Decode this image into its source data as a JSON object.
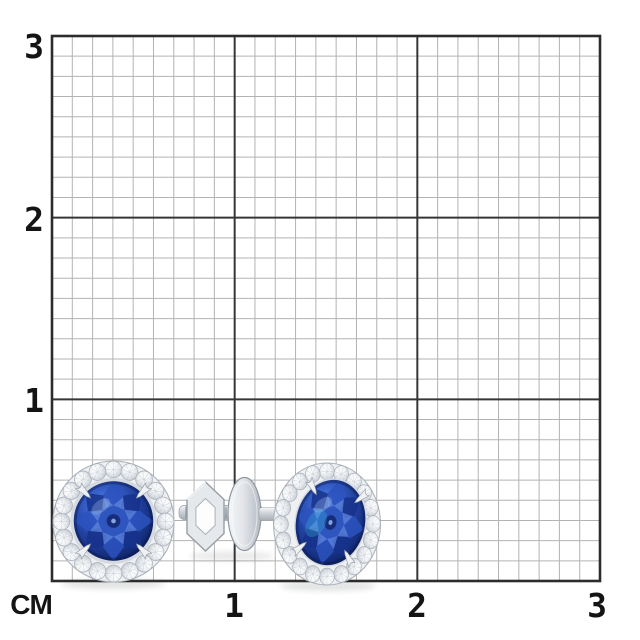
{
  "page": {
    "background": "#ffffff"
  },
  "ruler": {
    "unit_label": "CM",
    "y_ticks": [
      "3",
      "2",
      "1"
    ],
    "x_ticks": [
      "1",
      "2",
      "3"
    ],
    "range_cm": 3
  },
  "grid": {
    "cells_per_cm": 9,
    "minor_color": "#b3b3b3",
    "major_color": "#363636",
    "border_color": "#2c2c2c"
  },
  "product": {
    "description": "Pair of silver halo stud earrings with round blue sapphire centers and small diamond halos; screw-back post shown between them",
    "pieces": [
      {
        "id": "left-earring",
        "view": "front"
      },
      {
        "id": "screw-back-post",
        "view": "side"
      },
      {
        "id": "right-earring",
        "view": "three-quarter"
      }
    ],
    "colors": {
      "sapphire": "#21419f",
      "sapphire_dark": "#0a1950",
      "sapphire_light": "#6b93e4",
      "diamond": "#e9ecef",
      "metal": "#c9ced4"
    }
  }
}
